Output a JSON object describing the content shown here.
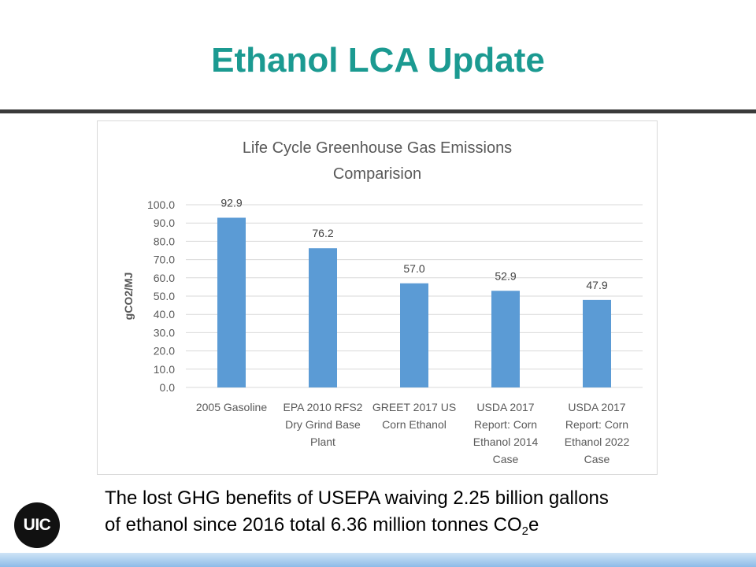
{
  "slide": {
    "title": "Ethanol LCA Update",
    "caption_line1": "The lost GHG benefits of USEPA waiving 2.25 billion gallons",
    "caption_line2_pre": "of ethanol since 2016 total 6.36 million tonnes CO",
    "caption_sub": "2",
    "caption_post": "e",
    "logo_text": "UIC"
  },
  "colors": {
    "title": "#1b9a91",
    "bar": "#5b9bd5",
    "footer_gradient_top": "#cfe4f6",
    "footer_gradient_bottom": "#8dbbe8"
  },
  "chart_data": {
    "type": "bar",
    "title": "Life Cycle Greenhouse Gas Emissions Comparision",
    "title_lines": [
      "Life Cycle Greenhouse  Gas Emissions",
      "Comparision"
    ],
    "ylabel": "gCO2/MJ",
    "xlabel": "",
    "ylim": [
      0,
      100
    ],
    "yticks": [
      "0.0",
      "10.0",
      "20.0",
      "30.0",
      "40.0",
      "50.0",
      "60.0",
      "70.0",
      "80.0",
      "90.0",
      "100.0"
    ],
    "grid": true,
    "categories": [
      [
        "2005 Gasoline"
      ],
      [
        "EPA 2010 RFS2",
        "Dry Grind Base",
        "Plant"
      ],
      [
        "GREET 2017 US",
        "Corn Ethanol"
      ],
      [
        "USDA 2017",
        "Report: Corn",
        "Ethanol 2014",
        "Case"
      ],
      [
        "USDA 2017",
        "Report: Corn",
        "Ethanol 2022",
        "Case"
      ]
    ],
    "values": [
      92.9,
      76.2,
      57.0,
      52.9,
      47.9
    ],
    "data_labels": [
      "92.9",
      "76.2",
      "57.0",
      "52.9",
      "47.9"
    ]
  }
}
